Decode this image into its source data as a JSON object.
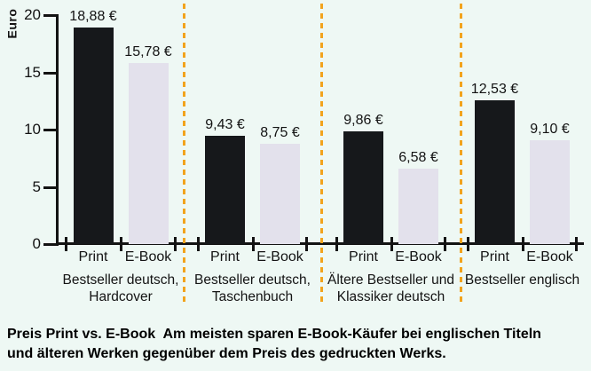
{
  "figure": {
    "background": "#eef8f4",
    "y_axis_label": "Euro",
    "caption": {
      "line1": "Preis Print vs. E-Book  Am meisten sparen E-Book-Käufer bei englischen Titeln",
      "line2": "und älteren Werken gegenüber dem Preis des gedruckten Werks."
    }
  },
  "chart_data": {
    "type": "bar",
    "title": "Preis Print vs. E-Book",
    "ylabel": "Euro",
    "ylim": [
      0,
      20
    ],
    "yticks": [
      20,
      15,
      10,
      5,
      0
    ],
    "grid": false,
    "legend_position": "none",
    "categories": [
      "Bestseller deutsch, Hardcover",
      "Bestseller deutsch, Taschenbuch",
      "Ältere Bestseller und Klassiker deutsch",
      "Bestseller englisch"
    ],
    "category_lines": [
      [
        "Bestseller deutsch,",
        "Hardcover"
      ],
      [
        "Bestseller deutsch,",
        "Taschenbuch"
      ],
      [
        "Ältere Bestseller und",
        "Klassiker deutsch"
      ],
      [
        "Bestseller englisch"
      ]
    ],
    "bar_axis_labels": [
      "Print",
      "E-Book"
    ],
    "series": [
      {
        "name": "Print",
        "color": "#16181b",
        "values": [
          18.88,
          9.43,
          9.86,
          12.53
        ],
        "value_labels": [
          "18,88 €",
          "9,43 €",
          "9,86 €",
          "12,53 €"
        ]
      },
      {
        "name": "E-Book",
        "color": "#e3e1ec",
        "values": [
          15.78,
          8.75,
          6.58,
          9.1
        ],
        "value_labels": [
          "15,78 €",
          "8,75 €",
          "6,58 €",
          "9,10 €"
        ]
      }
    ],
    "separator_color": "#f2a31d",
    "axis_color": "#131313"
  }
}
